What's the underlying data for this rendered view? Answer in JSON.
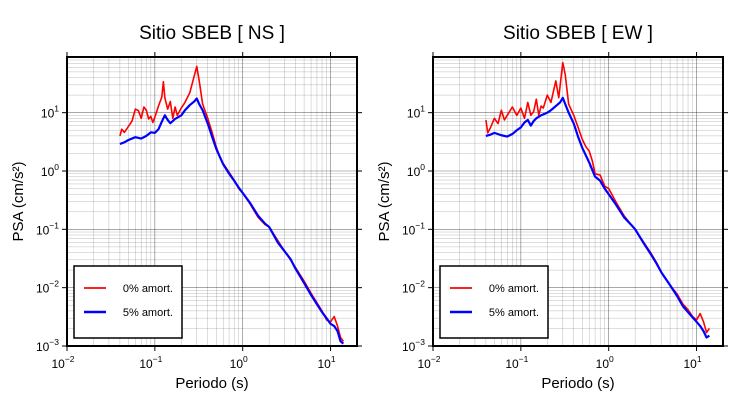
{
  "chart_data": [
    {
      "type": "line",
      "title": "Sitio SBEB [ NS ]",
      "xlabel": "Periodo (s)",
      "ylabel": "PSA (cm/s²)",
      "xscale": "log",
      "yscale": "log",
      "xlim": [
        0.01,
        20
      ],
      "ylim": [
        0.001,
        90
      ],
      "xticks": [
        {
          "base": "10",
          "exp": "−2"
        },
        {
          "base": "10",
          "exp": "−1"
        },
        {
          "base": "10",
          "exp": "0"
        },
        {
          "base": "10",
          "exp": "1"
        }
      ],
      "yticks": [
        {
          "base": "10",
          "exp": "1"
        },
        {
          "base": "10",
          "exp": "0"
        },
        {
          "base": "10",
          "exp": "−1"
        },
        {
          "base": "10",
          "exp": "−2"
        },
        {
          "base": "10",
          "exp": "−3"
        }
      ],
      "grid": true,
      "legend_position": "bottom-left",
      "series": [
        {
          "name": "0% amort.",
          "color": "#ff0000",
          "points": [
            [
              0.04,
              4.0
            ],
            [
              0.042,
              5.2
            ],
            [
              0.045,
              4.6
            ],
            [
              0.05,
              5.8
            ],
            [
              0.055,
              7.2
            ],
            [
              0.06,
              11.5
            ],
            [
              0.065,
              10.8
            ],
            [
              0.07,
              8.0
            ],
            [
              0.075,
              12.5
            ],
            [
              0.08,
              11.0
            ],
            [
              0.085,
              7.8
            ],
            [
              0.09,
              8.6
            ],
            [
              0.095,
              6.8
            ],
            [
              0.1,
              8.4
            ],
            [
              0.11,
              13.0
            ],
            [
              0.12,
              18.5
            ],
            [
              0.125,
              34.0
            ],
            [
              0.13,
              18.0
            ],
            [
              0.14,
              11.5
            ],
            [
              0.15,
              15.5
            ],
            [
              0.16,
              8.0
            ],
            [
              0.17,
              12.5
            ],
            [
              0.18,
              9.0
            ],
            [
              0.2,
              12.0
            ],
            [
              0.22,
              15.0
            ],
            [
              0.25,
              22.0
            ],
            [
              0.28,
              42.0
            ],
            [
              0.3,
              62.0
            ],
            [
              0.32,
              35.0
            ],
            [
              0.35,
              14.0
            ],
            [
              0.4,
              8.0
            ],
            [
              0.45,
              4.5
            ],
            [
              0.5,
              2.6
            ],
            [
              0.55,
              1.7
            ],
            [
              0.6,
              1.35
            ],
            [
              0.7,
              0.95
            ],
            [
              0.8,
              0.7
            ],
            [
              0.9,
              0.5
            ],
            [
              1.0,
              0.42
            ],
            [
              1.2,
              0.28
            ],
            [
              1.5,
              0.16
            ],
            [
              1.8,
              0.12
            ],
            [
              2.0,
              0.11
            ],
            [
              2.5,
              0.065
            ],
            [
              3.0,
              0.042
            ],
            [
              3.5,
              0.03
            ],
            [
              4.0,
              0.022
            ],
            [
              5.0,
              0.013
            ],
            [
              6.0,
              0.008
            ],
            [
              7.0,
              0.0055
            ],
            [
              8.0,
              0.004
            ],
            [
              9.0,
              0.0028
            ],
            [
              10.0,
              0.0026
            ],
            [
              11.0,
              0.0032
            ],
            [
              12.0,
              0.0022
            ],
            [
              13.0,
              0.0014
            ],
            [
              14.0,
              0.0012
            ]
          ]
        },
        {
          "name": "5% amort.",
          "color": "#0000ff",
          "points": [
            [
              0.04,
              2.9
            ],
            [
              0.045,
              3.1
            ],
            [
              0.05,
              3.4
            ],
            [
              0.06,
              3.8
            ],
            [
              0.07,
              3.6
            ],
            [
              0.08,
              4.0
            ],
            [
              0.09,
              4.6
            ],
            [
              0.1,
              4.5
            ],
            [
              0.11,
              5.2
            ],
            [
              0.12,
              7.0
            ],
            [
              0.13,
              9.0
            ],
            [
              0.14,
              7.5
            ],
            [
              0.15,
              6.6
            ],
            [
              0.17,
              7.8
            ],
            [
              0.2,
              9.0
            ],
            [
              0.22,
              11.0
            ],
            [
              0.25,
              13.5
            ],
            [
              0.28,
              15.5
            ],
            [
              0.3,
              17.5
            ],
            [
              0.32,
              14.0
            ],
            [
              0.35,
              11.0
            ],
            [
              0.4,
              6.5
            ],
            [
              0.45,
              3.8
            ],
            [
              0.5,
              2.4
            ],
            [
              0.6,
              1.3
            ],
            [
              0.7,
              0.9
            ],
            [
              0.8,
              0.68
            ],
            [
              0.9,
              0.52
            ],
            [
              1.0,
              0.42
            ],
            [
              1.2,
              0.29
            ],
            [
              1.5,
              0.17
            ],
            [
              1.8,
              0.125
            ],
            [
              2.0,
              0.11
            ],
            [
              2.5,
              0.06
            ],
            [
              3.0,
              0.042
            ],
            [
              3.5,
              0.031
            ],
            [
              4.0,
              0.021
            ],
            [
              5.0,
              0.012
            ],
            [
              6.0,
              0.0075
            ],
            [
              7.0,
              0.0052
            ],
            [
              8.0,
              0.0038
            ],
            [
              9.0,
              0.003
            ],
            [
              10.0,
              0.0024
            ],
            [
              11.0,
              0.0022
            ],
            [
              12.0,
              0.0018
            ],
            [
              13.0,
              0.0012
            ],
            [
              14.0,
              0.0011
            ]
          ]
        }
      ]
    },
    {
      "type": "line",
      "title": "Sitio SBEB [ EW ]",
      "xlabel": "Periodo (s)",
      "ylabel": "PSA (cm/s²)",
      "xscale": "log",
      "yscale": "log",
      "xlim": [
        0.01,
        20
      ],
      "ylim": [
        0.001,
        90
      ],
      "xticks": [
        {
          "base": "10",
          "exp": "−2"
        },
        {
          "base": "10",
          "exp": "−1"
        },
        {
          "base": "10",
          "exp": "0"
        },
        {
          "base": "10",
          "exp": "1"
        }
      ],
      "yticks": [
        {
          "base": "10",
          "exp": "1"
        },
        {
          "base": "10",
          "exp": "0"
        },
        {
          "base": "10",
          "exp": "−1"
        },
        {
          "base": "10",
          "exp": "−2"
        },
        {
          "base": "10",
          "exp": "−3"
        }
      ],
      "grid": true,
      "legend_position": "bottom-left",
      "series": [
        {
          "name": "0% amort.",
          "color": "#ff0000",
          "points": [
            [
              0.04,
              7.5
            ],
            [
              0.042,
              4.5
            ],
            [
              0.045,
              5.5
            ],
            [
              0.05,
              8.0
            ],
            [
              0.055,
              6.5
            ],
            [
              0.06,
              11.0
            ],
            [
              0.065,
              7.5
            ],
            [
              0.07,
              9.0
            ],
            [
              0.08,
              12.5
            ],
            [
              0.09,
              9.0
            ],
            [
              0.1,
              12.0
            ],
            [
              0.11,
              8.0
            ],
            [
              0.12,
              15.0
            ],
            [
              0.13,
              9.0
            ],
            [
              0.14,
              10.5
            ],
            [
              0.15,
              17.0
            ],
            [
              0.16,
              9.0
            ],
            [
              0.17,
              13.0
            ],
            [
              0.18,
              12.0
            ],
            [
              0.2,
              20.0
            ],
            [
              0.22,
              15.0
            ],
            [
              0.25,
              35.0
            ],
            [
              0.27,
              18.0
            ],
            [
              0.3,
              72.0
            ],
            [
              0.32,
              45.0
            ],
            [
              0.35,
              14.0
            ],
            [
              0.4,
              9.0
            ],
            [
              0.45,
              5.5
            ],
            [
              0.5,
              3.5
            ],
            [
              0.55,
              2.6
            ],
            [
              0.6,
              2.2
            ],
            [
              0.65,
              1.5
            ],
            [
              0.7,
              0.9
            ],
            [
              0.8,
              0.85
            ],
            [
              0.9,
              0.55
            ],
            [
              1.0,
              0.5
            ],
            [
              1.2,
              0.3
            ],
            [
              1.5,
              0.17
            ],
            [
              1.8,
              0.12
            ],
            [
              2.0,
              0.1
            ],
            [
              2.5,
              0.06
            ],
            [
              3.0,
              0.04
            ],
            [
              3.5,
              0.027
            ],
            [
              4.0,
              0.018
            ],
            [
              5.0,
              0.011
            ],
            [
              6.0,
              0.0078
            ],
            [
              7.0,
              0.0052
            ],
            [
              8.0,
              0.0042
            ],
            [
              9.0,
              0.0032
            ],
            [
              10.0,
              0.0028
            ],
            [
              11.0,
              0.0036
            ],
            [
              12.0,
              0.0026
            ],
            [
              13.0,
              0.0017
            ],
            [
              14.0,
              0.002
            ]
          ]
        },
        {
          "name": "5% amort.",
          "color": "#0000ff",
          "points": [
            [
              0.04,
              4.0
            ],
            [
              0.045,
              4.2
            ],
            [
              0.05,
              4.5
            ],
            [
              0.06,
              4.1
            ],
            [
              0.07,
              3.9
            ],
            [
              0.08,
              4.3
            ],
            [
              0.09,
              5.0
            ],
            [
              0.1,
              5.6
            ],
            [
              0.11,
              6.8
            ],
            [
              0.12,
              7.5
            ],
            [
              0.13,
              6.0
            ],
            [
              0.14,
              7.2
            ],
            [
              0.15,
              8.0
            ],
            [
              0.17,
              9.0
            ],
            [
              0.2,
              10.0
            ],
            [
              0.22,
              11.0
            ],
            [
              0.25,
              13.0
            ],
            [
              0.28,
              15.0
            ],
            [
              0.3,
              18.0
            ],
            [
              0.32,
              14.0
            ],
            [
              0.35,
              10.0
            ],
            [
              0.4,
              6.5
            ],
            [
              0.45,
              3.8
            ],
            [
              0.5,
              2.5
            ],
            [
              0.6,
              1.4
            ],
            [
              0.7,
              0.8
            ],
            [
              0.8,
              0.68
            ],
            [
              0.9,
              0.5
            ],
            [
              1.0,
              0.4
            ],
            [
              1.2,
              0.27
            ],
            [
              1.5,
              0.16
            ],
            [
              1.8,
              0.12
            ],
            [
              2.0,
              0.1
            ],
            [
              2.5,
              0.058
            ],
            [
              3.0,
              0.038
            ],
            [
              3.5,
              0.026
            ],
            [
              4.0,
              0.018
            ],
            [
              5.0,
              0.011
            ],
            [
              6.0,
              0.0072
            ],
            [
              7.0,
              0.0048
            ],
            [
              8.0,
              0.0038
            ],
            [
              9.0,
              0.0031
            ],
            [
              10.0,
              0.0026
            ],
            [
              11.0,
              0.0022
            ],
            [
              12.0,
              0.0018
            ],
            [
              13.0,
              0.0014
            ],
            [
              14.0,
              0.0015
            ]
          ]
        }
      ]
    }
  ]
}
